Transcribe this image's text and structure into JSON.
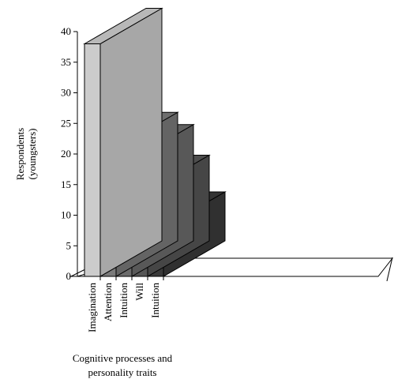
{
  "chart_data": {
    "type": "bar",
    "style": "3d",
    "categories": [
      "Imagination",
      "Attention",
      "Intuition",
      "Will",
      "Intuition"
    ],
    "values": [
      38,
      21,
      19,
      14,
      8
    ],
    "ylabel_line1": "Respondents",
    "ylabel_line2": "(youngsters)",
    "xlabel_line1": "Cognitive processes and",
    "xlabel_line2": "personality traits",
    "ylim": [
      0,
      40
    ],
    "yticks": [
      0,
      5,
      10,
      15,
      20,
      25,
      30,
      35,
      40
    ],
    "bar_colors": [
      "#cccccc",
      "#7a7a7a",
      "#6b6b6b",
      "#555555",
      "#3a3a3a"
    ],
    "grid": false,
    "legend": "none"
  }
}
